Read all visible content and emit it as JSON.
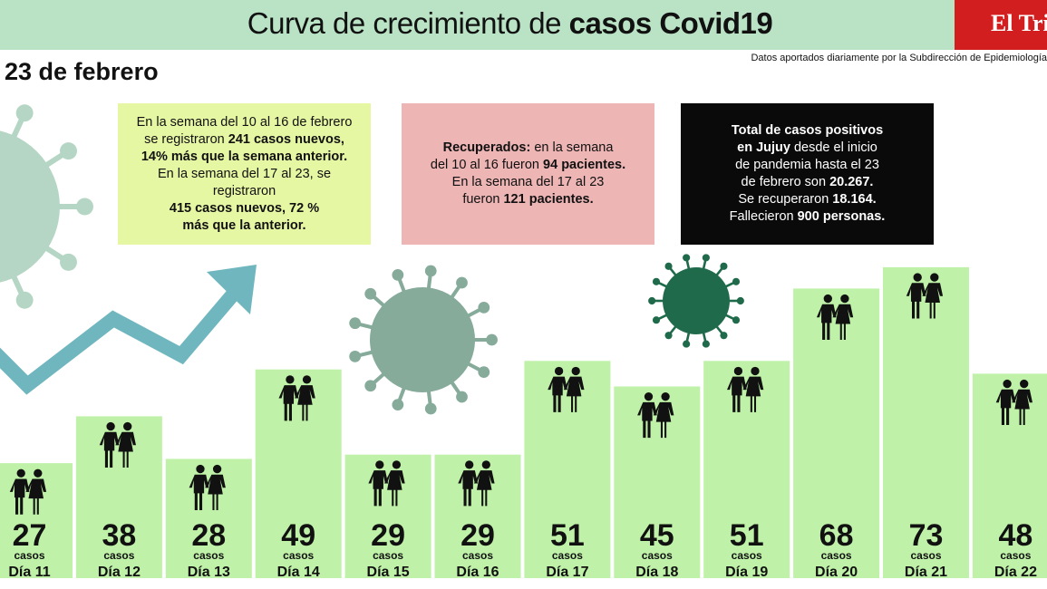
{
  "header": {
    "title_regular": "Curva de crecimiento de ",
    "title_bold": "casos Covid19",
    "logo": "El Tribuno",
    "source": "Datos aportados diariamente por la Subdirección de Epidemiología"
  },
  "date": "23 de febrero",
  "boxes": {
    "weekly": {
      "l1": "En la semana del 10 al 16 de febrero",
      "l2a": "se registraron ",
      "l2b": "241 casos nuevos,",
      "l3": "14% más que la semana anterior.",
      "l4": "En la semana del 17 al 23, se registraron",
      "l5": "415 casos nuevos, 72 %",
      "l6": "más que la anterior."
    },
    "recovered": {
      "l1a": "Recuperados:",
      "l1b": " en la semana",
      "l2a": "del 10 al 16 fueron ",
      "l2b": "94 pacientes.",
      "l3": "En la semana del 17 al 23",
      "l4a": "fueron ",
      "l4b": "121 pacientes."
    },
    "total": {
      "l1": "Total de casos positivos",
      "l2a": "en Jujuy",
      "l2b": " desde el inicio",
      "l3": "de pandemia hasta el 23",
      "l4a": "de febrero son ",
      "l4b": "20.267.",
      "l5a": "Se recuperaron ",
      "l5b": "18.164.",
      "l6a": "Fallecieron ",
      "l6b": "900 personas."
    }
  },
  "chart_data": {
    "type": "bar",
    "categories": [
      "Día 11",
      "Día 12",
      "Día 13",
      "Día 14",
      "Día 15",
      "Día 16",
      "Día 17",
      "Día 18",
      "Día 19",
      "Día 20",
      "Día 21",
      "Día 22"
    ],
    "values": [
      27,
      38,
      28,
      49,
      29,
      29,
      51,
      45,
      51,
      68,
      73,
      48
    ],
    "unit_label": "casos",
    "bar_color": "#bff2a8"
  },
  "colors": {
    "header_bg": "#b9e3c4",
    "virus_light": "#b5d6c4",
    "virus_mid": "#86ab9b",
    "virus_dark": "#1f6a4a",
    "arrow": "#6fb6bf"
  }
}
